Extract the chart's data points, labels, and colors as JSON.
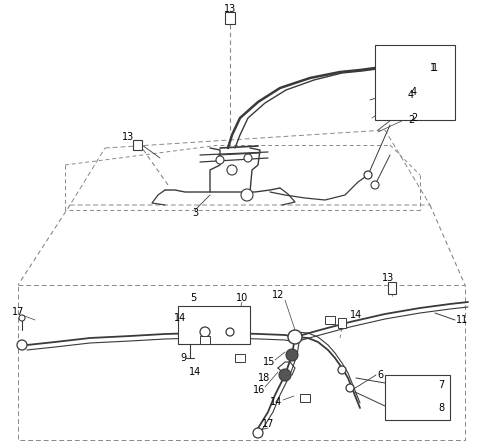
{
  "bg_color": "#ffffff",
  "line_color": "#3a3a3a",
  "dash_color": "#888888",
  "fig_width": 4.8,
  "fig_height": 4.47,
  "dpi": 100
}
